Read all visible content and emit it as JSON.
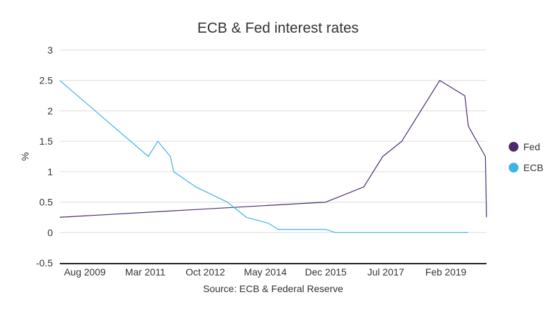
{
  "chart_data": {
    "type": "line",
    "title": "ECB & Fed interest rates",
    "xlabel": "Source: ECB & Federal Reserve",
    "ylabel": "%",
    "ylim": [
      -0.5,
      3
    ],
    "yticks": [
      "3",
      "2.5",
      "2",
      "1.5",
      "1",
      "0.5",
      "0",
      "-0.5"
    ],
    "ytick_values": [
      3,
      2.5,
      2,
      1.5,
      1,
      0.5,
      0,
      -0.5
    ],
    "xlim": [
      2008.92,
      2020.15
    ],
    "xticks": [
      "Aug 2009",
      "Mar 2011",
      "Oct 2012",
      "May 2014",
      "Dec 2015",
      "Jul 2017",
      "Feb 2019"
    ],
    "xtick_values": [
      2009.58,
      2011.17,
      2012.75,
      2014.33,
      2015.92,
      2017.5,
      2019.08
    ],
    "grid": true,
    "legend": "right",
    "series": [
      {
        "name": "Fed",
        "color": "#4b2a6b",
        "x": [
          2008.92,
          2015.92,
          2016.92,
          2017.42,
          2017.92,
          2018.92,
          2019.58,
          2019.67,
          2020.12,
          2020.15
        ],
        "y": [
          0.25,
          0.5,
          0.75,
          1.25,
          1.5,
          2.5,
          2.25,
          1.75,
          1.25,
          0.25
        ]
      },
      {
        "name": "ECB",
        "color": "#3db4e6",
        "x": [
          2008.92,
          2011.25,
          2011.5,
          2011.83,
          2011.92,
          2012.5,
          2013.33,
          2013.83,
          2014.42,
          2014.67,
          2015.92,
          2016.17,
          2019.67
        ],
        "y": [
          2.5,
          1.25,
          1.5,
          1.25,
          1.0,
          0.75,
          0.5,
          0.25,
          0.15,
          0.05,
          0.05,
          0.0,
          0.0
        ]
      }
    ]
  }
}
